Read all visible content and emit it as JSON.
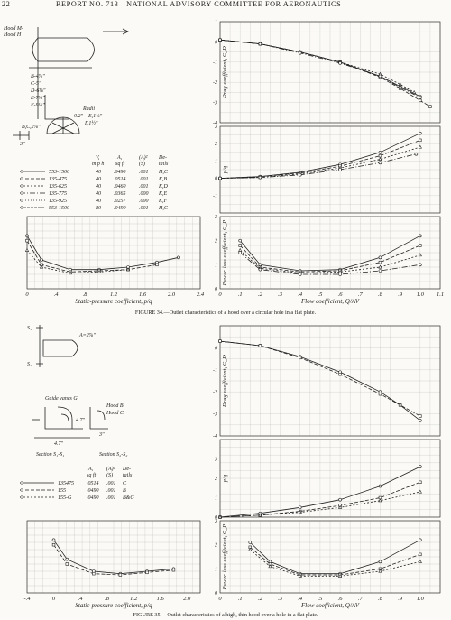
{
  "header": {
    "page_number": "22",
    "running_title": "REPORT NO. 713—NATIONAL ADVISORY COMMITTEE FOR AERONAUTICS"
  },
  "figure34": {
    "caption": "FIGURE 34.—Outlet characteristics of a hood over a circular hole in a flat plate.",
    "sketch": {
      "hood_labels": [
        "Hood M-",
        "Hood H"
      ],
      "dims": [
        "B-4⅞\"",
        "C-5\"",
        "D-6⅛\"",
        "E-7⅛\"",
        "F-9⅛\""
      ],
      "radii_title": "Radii",
      "radii": [
        "0.2\"",
        "E,1⅛\"",
        "F,1½\""
      ],
      "bc": "B,C,2⅞\"",
      "dim3": "3\""
    },
    "legend": {
      "headers": [
        "V,",
        "A,",
        "(A)²",
        "De-"
      ],
      "headers2": [
        "m p h",
        "sq ft",
        "(S)",
        "tails"
      ],
      "rows": [
        {
          "label": "553-1500",
          "v": "40",
          "a": ".0490",
          "as": ".001",
          "d": "H,C"
        },
        {
          "label": "135-475",
          "v": "40",
          "a": ".0514",
          "as": ".001",
          "d": "K,B"
        },
        {
          "label": "135-625",
          "v": "40",
          "a": ".0460",
          "as": ".001",
          "d": "K,D"
        },
        {
          "label": "135-775",
          "v": "40",
          "a": ".0365",
          "as": ".000",
          "d": "K,E"
        },
        {
          "label": "135-925",
          "v": "40",
          "a": ".0257",
          "as": ".000",
          "d": "K,F"
        },
        {
          "label": "553-1500",
          "v": "80",
          "a": ".0490",
          "as": ".001",
          "d": "H,C"
        }
      ]
    }
  },
  "figure35": {
    "caption": "FIGURE 35.—Outlet characteristics of a high, thin hood over a hole in a flat plate.",
    "sketch": {
      "s_labels": [
        "S₁",
        "S₂"
      ],
      "a_label": "A=2⅞\"",
      "guide_vanes": "Guide vanes G",
      "hoods": [
        "Hood B",
        "Hood C"
      ],
      "dims": [
        "4.7\"",
        "4.7\"",
        "3\""
      ],
      "sections": [
        "Section S₁-S₁",
        "Section S₂-S₂"
      ]
    },
    "legend": {
      "headers": [
        "A,",
        "(A)²",
        "De-"
      ],
      "headers2": [
        "sq ft",
        "(S)",
        "tails"
      ],
      "rows": [
        {
          "label": "135475",
          "a": ".0514",
          "as": ".001",
          "d": "C"
        },
        {
          "label": "155",
          "a": ".0490",
          "as": ".001",
          "d": "B"
        },
        {
          "label": "155-G",
          "a": ".0490",
          "as": ".001",
          "d": "B&G"
        }
      ]
    }
  },
  "chart_data": [
    {
      "id": "fig34-drag",
      "type": "line",
      "ylabel": "Drag coefficient, C_D",
      "ylim": [
        -4,
        1
      ],
      "x_ticks": [
        0,
        0.1,
        0.2,
        0.3,
        0.4,
        0.5,
        0.6,
        0.7,
        0.8,
        0.9,
        1.0,
        1.1
      ],
      "y_ticks": [
        1,
        0,
        -1,
        -2,
        -3,
        -4
      ],
      "series": [
        {
          "x": [
            0,
            0.2,
            0.4,
            0.6,
            0.8,
            0.9,
            1.0
          ],
          "y": [
            0.1,
            -0.1,
            -0.5,
            -1.0,
            -1.7,
            -2.2,
            -2.7
          ]
        },
        {
          "x": [
            0,
            0.2,
            0.4,
            0.6,
            0.8,
            0.9,
            1.0,
            1.05
          ],
          "y": [
            0.1,
            -0.1,
            -0.5,
            -1.0,
            -1.75,
            -2.3,
            -2.9,
            -3.2
          ]
        },
        {
          "x": [
            0,
            0.2,
            0.4,
            0.6,
            0.8,
            0.9,
            0.97
          ],
          "y": [
            0.1,
            -0.1,
            -0.5,
            -1.0,
            -1.6,
            -2.1,
            -2.5
          ]
        },
        {
          "x": [
            0,
            0.2,
            0.4,
            0.6,
            0.8,
            0.9,
            1.0
          ],
          "y": [
            0.1,
            -0.1,
            -0.55,
            -1.05,
            -1.7,
            -2.25,
            -2.75
          ]
        }
      ]
    },
    {
      "id": "fig34-pressure",
      "type": "line",
      "ylabel": "p/q",
      "ylim": [
        -2,
        3
      ],
      "x_ticks": [
        0,
        0.1,
        0.2,
        0.3,
        0.4,
        0.5,
        0.6,
        0.7,
        0.8,
        0.9,
        1.0,
        1.1
      ],
      "y_ticks": [
        3,
        2,
        1,
        0,
        -1
      ],
      "series": [
        {
          "x": [
            0,
            0.2,
            0.4,
            0.6,
            0.8,
            1.0
          ],
          "y": [
            0,
            0.1,
            0.35,
            0.8,
            1.5,
            2.6
          ]
        },
        {
          "x": [
            0,
            0.2,
            0.4,
            0.6,
            0.8,
            1.0
          ],
          "y": [
            0,
            0.1,
            0.3,
            0.7,
            1.3,
            2.2
          ]
        },
        {
          "x": [
            0,
            0.2,
            0.4,
            0.6,
            0.8,
            1.0
          ],
          "y": [
            0,
            0.05,
            0.25,
            0.6,
            1.1,
            1.8
          ]
        },
        {
          "x": [
            0,
            0.2,
            0.4,
            0.6,
            0.8,
            0.98
          ],
          "y": [
            0,
            0.05,
            0.2,
            0.5,
            0.9,
            1.4
          ]
        }
      ]
    },
    {
      "id": "fig34-powerloss",
      "type": "line",
      "xlabel": "Flow coefficient, Q/AV",
      "ylabel": "Power-loss coefficient, C_P",
      "xlim": [
        0,
        1.1
      ],
      "ylim": [
        0,
        3
      ],
      "x_ticks": [
        0,
        0.1,
        0.2,
        0.3,
        0.4,
        0.5,
        0.6,
        0.7,
        0.8,
        0.9,
        1.0,
        1.1
      ],
      "x_tick_labels": [
        "0",
        ".1",
        ".2",
        ".3",
        ".4",
        ".5",
        ".6",
        ".7",
        ".8",
        ".9",
        "1.0",
        "1.1"
      ],
      "y_ticks": [
        3,
        2,
        1,
        0
      ],
      "series": [
        {
          "x": [
            0.1,
            0.2,
            0.4,
            0.6,
            0.8,
            1.0
          ],
          "y": [
            2.0,
            1.0,
            0.75,
            0.8,
            1.3,
            2.2
          ]
        },
        {
          "x": [
            0.1,
            0.2,
            0.4,
            0.6,
            0.8,
            1.0
          ],
          "y": [
            1.8,
            0.9,
            0.7,
            0.75,
            1.1,
            1.8
          ]
        },
        {
          "x": [
            0.1,
            0.2,
            0.4,
            0.6,
            0.8,
            1.0
          ],
          "y": [
            1.6,
            0.85,
            0.65,
            0.7,
            0.9,
            1.4
          ]
        },
        {
          "x": [
            0.1,
            0.2,
            0.4,
            0.6,
            0.8,
            1.0
          ],
          "y": [
            1.5,
            0.8,
            0.6,
            0.6,
            0.75,
            1.0
          ]
        }
      ]
    },
    {
      "id": "fig34-static",
      "type": "line",
      "xlabel": "Static-pressure coefficient, p/q",
      "xlim": [
        0,
        2.4
      ],
      "ylim": [
        0,
        3
      ],
      "x_ticks": [
        0,
        0.4,
        0.8,
        1.2,
        1.6,
        2.0,
        2.4
      ],
      "x_tick_labels": [
        "0",
        ".4",
        ".8",
        "1.2",
        "1.6",
        "2.0",
        "2.4"
      ],
      "series": [
        {
          "x": [
            0,
            0.2,
            0.6,
            1.0,
            1.4,
            1.8,
            2.1
          ],
          "y": [
            2.2,
            1.2,
            0.8,
            0.8,
            0.9,
            1.1,
            1.3
          ]
        },
        {
          "x": [
            0,
            0.2,
            0.6,
            1.0,
            1.4,
            1.8
          ],
          "y": [
            2.0,
            1.0,
            0.7,
            0.75,
            0.8,
            1.0
          ]
        },
        {
          "x": [
            0,
            0.2,
            0.6,
            1.0,
            1.4
          ],
          "y": [
            1.6,
            0.9,
            0.65,
            0.7,
            0.8
          ]
        }
      ]
    },
    {
      "id": "fig35-drag",
      "type": "line",
      "ylabel": "Drag coefficient, C_D",
      "ylim": [
        -4,
        1
      ],
      "x_ticks": [
        0,
        0.1,
        0.2,
        0.3,
        0.4,
        0.5,
        0.6,
        0.7,
        0.8,
        0.9,
        1.0
      ],
      "y_ticks": [
        0,
        -1,
        -2,
        -3,
        -4
      ],
      "series": [
        {
          "x": [
            0,
            0.2,
            0.4,
            0.6,
            0.8,
            0.9,
            1.0
          ],
          "y": [
            0.3,
            0.1,
            -0.4,
            -1.1,
            -2.0,
            -2.6,
            -3.3
          ]
        },
        {
          "x": [
            0,
            0.2,
            0.4,
            0.6,
            0.8,
            0.9,
            1.0
          ],
          "y": [
            0.3,
            0.1,
            -0.45,
            -1.2,
            -2.1,
            -2.6,
            -3.1
          ]
        }
      ]
    },
    {
      "id": "fig35-pressure",
      "type": "line",
      "ylabel": "p/q",
      "ylim": [
        0,
        4
      ],
      "y_ticks": [
        3,
        2,
        1,
        0
      ],
      "series": [
        {
          "x": [
            0,
            0.2,
            0.4,
            0.6,
            0.8,
            1.0
          ],
          "y": [
            0,
            0.2,
            0.5,
            0.9,
            1.6,
            2.6
          ]
        },
        {
          "x": [
            0,
            0.2,
            0.4,
            0.6,
            0.8,
            1.0
          ],
          "y": [
            0,
            0.1,
            0.3,
            0.6,
            1.0,
            1.8
          ]
        },
        {
          "x": [
            0,
            0.2,
            0.4,
            0.6,
            0.8,
            1.0
          ],
          "y": [
            0,
            0.1,
            0.25,
            0.5,
            0.85,
            1.3
          ]
        }
      ]
    },
    {
      "id": "fig35-powerloss",
      "type": "line",
      "xlabel": "Flow coefficient, Q/AV",
      "ylabel": "Power-loss coefficient, C_P",
      "xlim": [
        0,
        1.1
      ],
      "ylim": [
        0,
        3
      ],
      "x_ticks": [
        0,
        0.1,
        0.2,
        0.3,
        0.4,
        0.5,
        0.6,
        0.7,
        0.8,
        0.9,
        1.0
      ],
      "x_tick_labels": [
        "0",
        ".1",
        ".2",
        ".3",
        ".4",
        ".5",
        ".6",
        ".7",
        ".8",
        ".9",
        "1.0"
      ],
      "y_ticks": [
        3,
        2,
        1,
        0
      ],
      "series": [
        {
          "x": [
            0.15,
            0.25,
            0.4,
            0.6,
            0.8,
            1.0
          ],
          "y": [
            2.1,
            1.3,
            0.8,
            0.8,
            1.3,
            2.2
          ]
        },
        {
          "x": [
            0.15,
            0.25,
            0.4,
            0.6,
            0.8,
            1.0
          ],
          "y": [
            1.9,
            1.2,
            0.75,
            0.75,
            1.0,
            1.6
          ]
        },
        {
          "x": [
            0.15,
            0.25,
            0.4,
            0.6,
            0.8,
            1.0
          ],
          "y": [
            1.8,
            1.1,
            0.7,
            0.7,
            0.9,
            1.3
          ]
        }
      ]
    },
    {
      "id": "fig35-static",
      "type": "line",
      "xlabel": "Static-pressure coefficient, p/q",
      "xlim": [
        -0.4,
        2.2
      ],
      "ylim": [
        0,
        3
      ],
      "x_ticks": [
        -0.4,
        0,
        0.4,
        0.8,
        1.2,
        1.6,
        2.0
      ],
      "x_tick_labels": [
        "-.4",
        "0",
        ".4",
        ".8",
        "1.2",
        "1.6",
        "2.0"
      ],
      "series": [
        {
          "x": [
            0,
            0.2,
            0.6,
            1.0,
            1.4,
            1.8
          ],
          "y": [
            2.2,
            1.4,
            0.9,
            0.8,
            0.9,
            1.0
          ]
        },
        {
          "x": [
            0,
            0.2,
            0.6,
            1.0,
            1.4,
            1.8
          ],
          "y": [
            2.0,
            1.2,
            0.8,
            0.75,
            0.85,
            0.95
          ]
        }
      ]
    }
  ]
}
